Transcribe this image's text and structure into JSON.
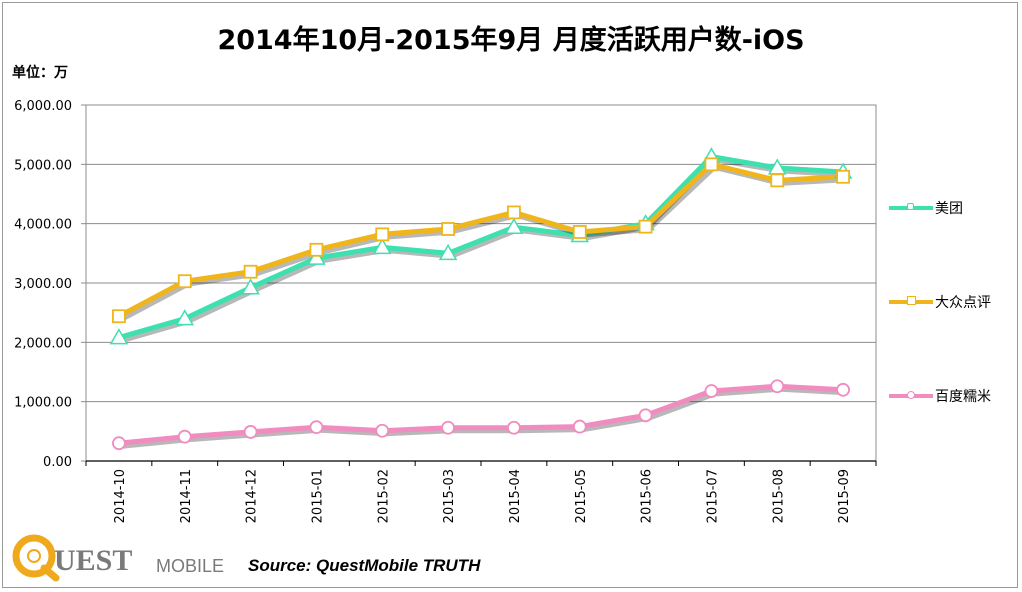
{
  "title": "2014年10月-2015年9月 月度活跃用户数-iOS",
  "unit": "单位：万",
  "source": "Source: QuestMobile TRUTH",
  "logo": {
    "brand_mark": "Q",
    "word_1": "UEST",
    "word_2": "MOBILE"
  },
  "colors": {
    "meituan": "#3ee0b0",
    "dianping": "#f0b51a",
    "nuomi": "#f08cc0",
    "grid": "#8c8c8c",
    "logo_accent": "#f0a81c",
    "logo_text": "#7a7a7a"
  },
  "chart_data": {
    "type": "line",
    "categories": [
      "2014-10",
      "2014-11",
      "2014-12",
      "2015-01",
      "2015-02",
      "2015-03",
      "2015-04",
      "2015-05",
      "2015-06",
      "2015-07",
      "2015-08",
      "2015-09"
    ],
    "ylim": [
      0,
      6000
    ],
    "yticks": [
      0,
      1000,
      2000,
      3000,
      4000,
      5000,
      6000
    ],
    "ytick_labels": [
      "0.00",
      "1,000.00",
      "2,000.00",
      "3,000.00",
      "4,000.00",
      "5,000.00",
      "6,000.00"
    ],
    "grid": true,
    "legend_position": "right",
    "series": [
      {
        "name": "美团",
        "marker": "triangle",
        "color_key": "meituan",
        "values": [
          2080,
          2400,
          2920,
          3420,
          3600,
          3500,
          3940,
          3800,
          4000,
          5130,
          4940,
          4870
        ]
      },
      {
        "name": "大众点评",
        "marker": "square",
        "color_key": "dianping",
        "values": [
          2440,
          3030,
          3190,
          3560,
          3820,
          3910,
          4190,
          3860,
          3950,
          5000,
          4730,
          4790
        ]
      },
      {
        "name": "百度糯米",
        "marker": "circle",
        "color_key": "nuomi",
        "values": [
          300,
          410,
          490,
          570,
          510,
          560,
          560,
          580,
          770,
          1180,
          1260,
          1200
        ]
      }
    ]
  }
}
